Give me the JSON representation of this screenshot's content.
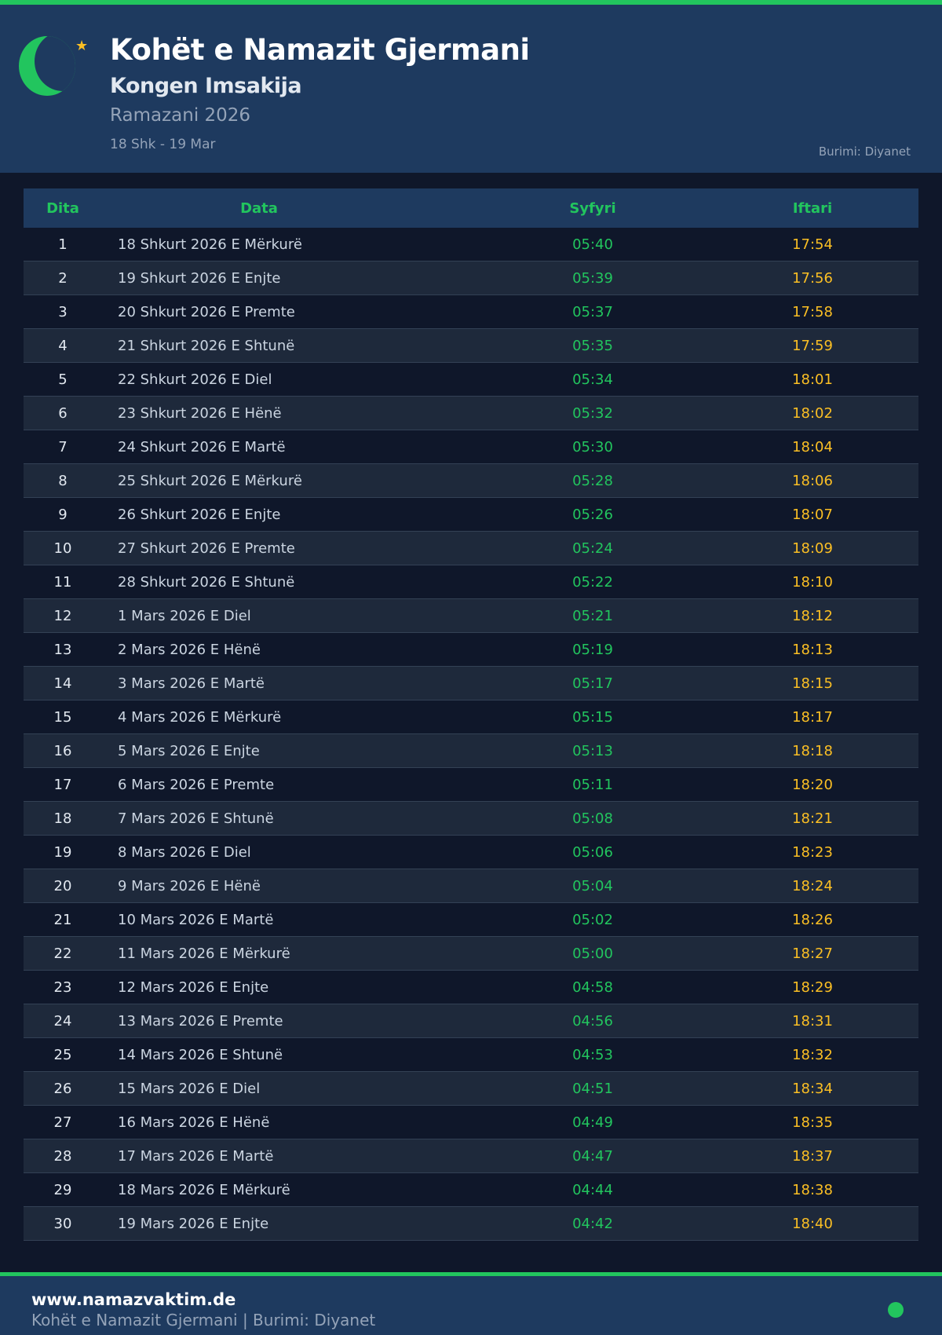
{
  "header": {
    "title": "Kohët e Namazit Gjermani",
    "subtitle": "Kongen Imsakija",
    "season": "Ramazani 2026",
    "range": "18 Shk - 19 Mar",
    "source": "Burimi: Diyanet"
  },
  "colors": {
    "accent": "#22c55e",
    "iftar": "#fbbf24",
    "header_bg": "#1e3a5f",
    "page_bg": "#0f172a"
  },
  "table": {
    "headers": [
      "Dita",
      "Data",
      "Syfyri",
      "Iftari"
    ],
    "rows": [
      [
        "1",
        "18 Shkurt 2026 E Mërkurë",
        "05:40",
        "17:54"
      ],
      [
        "2",
        "19 Shkurt 2026 E Enjte",
        "05:39",
        "17:56"
      ],
      [
        "3",
        "20 Shkurt 2026 E Premte",
        "05:37",
        "17:58"
      ],
      [
        "4",
        "21 Shkurt 2026 E Shtunë",
        "05:35",
        "17:59"
      ],
      [
        "5",
        "22 Shkurt 2026 E Diel",
        "05:34",
        "18:01"
      ],
      [
        "6",
        "23 Shkurt 2026 E Hënë",
        "05:32",
        "18:02"
      ],
      [
        "7",
        "24 Shkurt 2026 E Martë",
        "05:30",
        "18:04"
      ],
      [
        "8",
        "25 Shkurt 2026 E Mërkurë",
        "05:28",
        "18:06"
      ],
      [
        "9",
        "26 Shkurt 2026 E Enjte",
        "05:26",
        "18:07"
      ],
      [
        "10",
        "27 Shkurt 2026 E Premte",
        "05:24",
        "18:09"
      ],
      [
        "11",
        "28 Shkurt 2026 E Shtunë",
        "05:22",
        "18:10"
      ],
      [
        "12",
        "1 Mars 2026 E Diel",
        "05:21",
        "18:12"
      ],
      [
        "13",
        "2 Mars 2026 E Hënë",
        "05:19",
        "18:13"
      ],
      [
        "14",
        "3 Mars 2026 E Martë",
        "05:17",
        "18:15"
      ],
      [
        "15",
        "4 Mars 2026 E Mërkurë",
        "05:15",
        "18:17"
      ],
      [
        "16",
        "5 Mars 2026 E Enjte",
        "05:13",
        "18:18"
      ],
      [
        "17",
        "6 Mars 2026 E Premte",
        "05:11",
        "18:20"
      ],
      [
        "18",
        "7 Mars 2026 E Shtunë",
        "05:08",
        "18:21"
      ],
      [
        "19",
        "8 Mars 2026 E Diel",
        "05:06",
        "18:23"
      ],
      [
        "20",
        "9 Mars 2026 E Hënë",
        "05:04",
        "18:24"
      ],
      [
        "21",
        "10 Mars 2026 E Martë",
        "05:02",
        "18:26"
      ],
      [
        "22",
        "11 Mars 2026 E Mërkurë",
        "05:00",
        "18:27"
      ],
      [
        "23",
        "12 Mars 2026 E Enjte",
        "04:58",
        "18:29"
      ],
      [
        "24",
        "13 Mars 2026 E Premte",
        "04:56",
        "18:31"
      ],
      [
        "25",
        "14 Mars 2026 E Shtunë",
        "04:53",
        "18:32"
      ],
      [
        "26",
        "15 Mars 2026 E Diel",
        "04:51",
        "18:34"
      ],
      [
        "27",
        "16 Mars 2026 E Hënë",
        "04:49",
        "18:35"
      ],
      [
        "28",
        "17 Mars 2026 E Martë",
        "04:47",
        "18:37"
      ],
      [
        "29",
        "18 Mars 2026 E Mërkurë",
        "04:44",
        "18:38"
      ],
      [
        "30",
        "19 Mars 2026 E Enjte",
        "04:42",
        "18:40"
      ]
    ]
  },
  "footer": {
    "site": "www.namazvaktim.de",
    "text": "Kohët e Namazit Gjermani | Burimi: Diyanet"
  }
}
